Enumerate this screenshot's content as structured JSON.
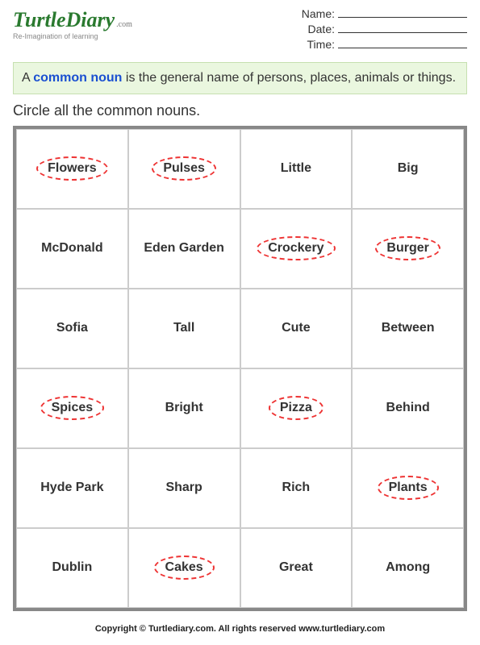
{
  "logo": {
    "main": "TurtleDiary",
    "suffix": ".com",
    "tagline": "Re-Imagination of learning",
    "colors": {
      "main": "#2a7a2f",
      "suffix": "#777777",
      "tagline": "#888888"
    }
  },
  "fields": {
    "name_label": "Name:",
    "date_label": "Date:",
    "time_label": "Time:"
  },
  "definition": {
    "prefix": "A ",
    "term": "common noun",
    "rest": " is the general name of persons, places, animals or things.",
    "background_color": "#eaf7df",
    "border_color": "#c6e0b0",
    "term_color": "#1a4fd1"
  },
  "instructions": "Circle all the common nouns.",
  "grid": {
    "border_color": "#888888",
    "cell_border_color": "#cccccc",
    "circle_color": "#ee3333",
    "circle_style": "dashed",
    "columns": 4,
    "rows": [
      [
        {
          "text": "Flowers",
          "circled": true
        },
        {
          "text": "Pulses",
          "circled": true
        },
        {
          "text": "Little",
          "circled": false
        },
        {
          "text": "Big",
          "circled": false
        }
      ],
      [
        {
          "text": "McDonald",
          "circled": false
        },
        {
          "text": "Eden Garden",
          "circled": false
        },
        {
          "text": "Crockery",
          "circled": true
        },
        {
          "text": "Burger",
          "circled": true
        }
      ],
      [
        {
          "text": "Sofia",
          "circled": false
        },
        {
          "text": "Tall",
          "circled": false
        },
        {
          "text": "Cute",
          "circled": false
        },
        {
          "text": "Between",
          "circled": false
        }
      ],
      [
        {
          "text": "Spices",
          "circled": true
        },
        {
          "text": "Bright",
          "circled": false
        },
        {
          "text": "Pizza",
          "circled": true
        },
        {
          "text": "Behind",
          "circled": false
        }
      ],
      [
        {
          "text": "Hyde Park",
          "circled": false
        },
        {
          "text": "Sharp",
          "circled": false
        },
        {
          "text": "Rich",
          "circled": false
        },
        {
          "text": "Plants",
          "circled": true
        }
      ],
      [
        {
          "text": "Dublin",
          "circled": false
        },
        {
          "text": "Cakes",
          "circled": true
        },
        {
          "text": "Great",
          "circled": false
        },
        {
          "text": "Among",
          "circled": false
        }
      ]
    ]
  },
  "footer": "Copyright © Turtlediary.com. All rights reserved  www.turtlediary.com"
}
